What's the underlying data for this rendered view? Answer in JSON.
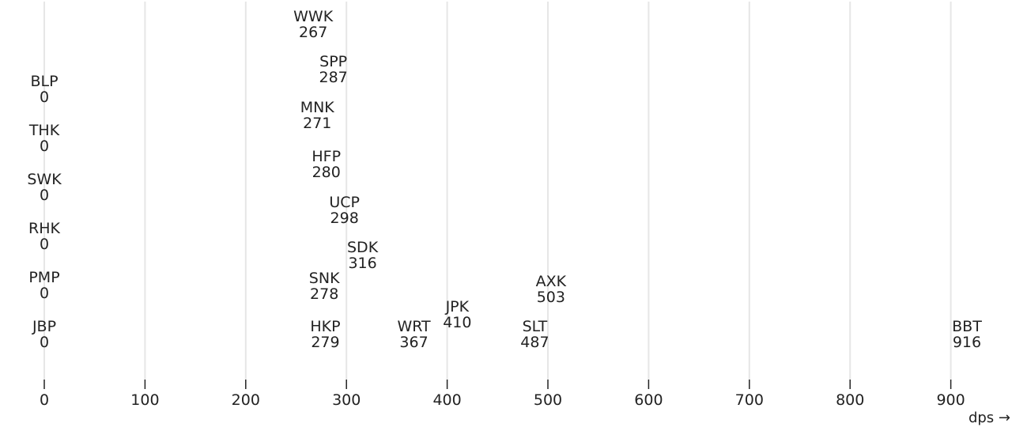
{
  "chart_data": {
    "type": "scatter",
    "title": "",
    "xlabel": "dps →",
    "ylabel": "",
    "xlim": [
      0,
      916
    ],
    "x_ticks": [
      "0",
      "100",
      "200",
      "300",
      "400",
      "500",
      "600",
      "700",
      "800",
      "900"
    ],
    "grid": true,
    "legend": "none",
    "points": [
      {
        "label": "WWK",
        "value": 267
      },
      {
        "label": "SPP",
        "value": 287
      },
      {
        "label": "BLP",
        "value": 0
      },
      {
        "label": "MNK",
        "value": 271
      },
      {
        "label": "THK",
        "value": 0
      },
      {
        "label": "HFP",
        "value": 280
      },
      {
        "label": "SWK",
        "value": 0
      },
      {
        "label": "UCP",
        "value": 298
      },
      {
        "label": "RHK",
        "value": 0
      },
      {
        "label": "SDK",
        "value": 316
      },
      {
        "label": "PMP",
        "value": 0
      },
      {
        "label": "SNK",
        "value": 278
      },
      {
        "label": "AXK",
        "value": 503
      },
      {
        "label": "JPK",
        "value": 410
      },
      {
        "label": "JBP",
        "value": 0
      },
      {
        "label": "HKP",
        "value": 279
      },
      {
        "label": "WRT",
        "value": 367
      },
      {
        "label": "SLT",
        "value": 487
      },
      {
        "label": "BBT",
        "value": 916
      }
    ]
  },
  "colors": {
    "text": "#222222",
    "grid": "#e6e6e6",
    "background": "#ffffff"
  }
}
